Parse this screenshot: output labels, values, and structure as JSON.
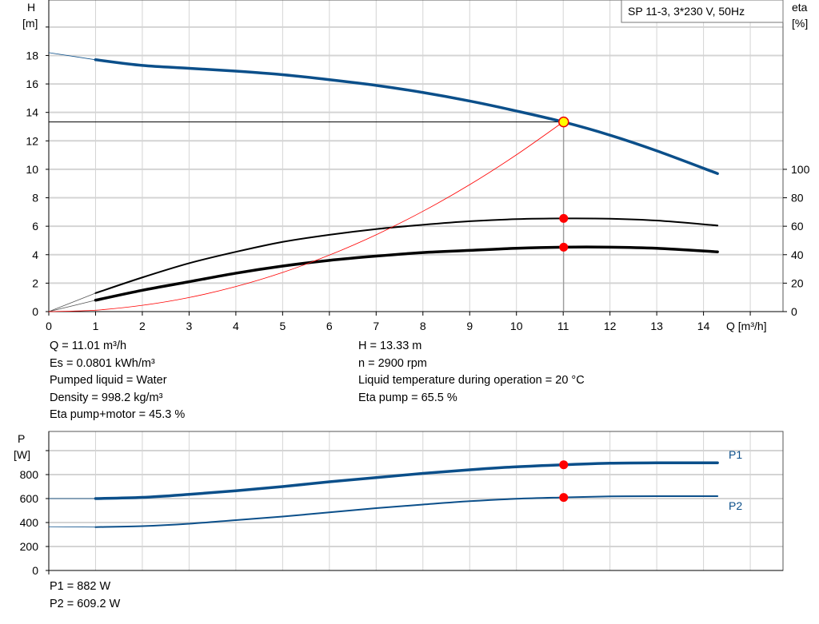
{
  "chart_data": [
    {
      "type": "line",
      "title": "SP 11-3, 3*230 V, 50Hz",
      "ylabel": "H",
      "yunit": "[m]",
      "y2label": "eta",
      "y2unit": "[%]",
      "xlabel": "Q [m³/h]",
      "xlim": [
        0,
        15.7
      ],
      "ylim": [
        0,
        21.9
      ],
      "y2lim": [
        0,
        100
      ],
      "grid": true,
      "xticks": [
        0,
        1,
        2,
        3,
        4,
        5,
        6,
        7,
        8,
        9,
        10,
        11,
        12,
        13,
        14
      ],
      "yticks": [
        0,
        2,
        4,
        6,
        8,
        10,
        12,
        14,
        16,
        18
      ],
      "y2ticks": [
        0,
        20,
        40,
        60,
        80,
        100
      ],
      "series": [
        {
          "key": "H",
          "color": "#0b4f8a",
          "x": [
            1,
            2,
            3,
            4,
            5,
            6,
            7,
            8,
            9,
            10,
            11,
            12,
            13,
            14.3
          ],
          "y": [
            17.7,
            17.3,
            17.1,
            16.9,
            16.65,
            16.3,
            15.9,
            15.4,
            14.8,
            14.1,
            13.33,
            12.4,
            11.3,
            9.7
          ],
          "extrapolated_from": [
            0,
            18.2
          ]
        },
        {
          "key": "eta_pump",
          "color": "#000000",
          "axis": "eta",
          "x": [
            1,
            2,
            3,
            4,
            5,
            6,
            7,
            8,
            9,
            10,
            11,
            12,
            13,
            14.3
          ],
          "y": [
            13,
            24,
            34,
            42,
            49,
            54,
            58,
            61,
            63.5,
            65,
            65.5,
            65.3,
            64,
            60.5
          ],
          "extrapolated_from": [
            0,
            0
          ]
        },
        {
          "key": "eta_total",
          "color": "#000000",
          "axis": "eta",
          "x": [
            1,
            2,
            3,
            4,
            5,
            6,
            7,
            8,
            9,
            10,
            11,
            12,
            13,
            14.3
          ],
          "y": [
            8,
            15,
            21,
            27,
            32,
            36,
            39,
            41.5,
            43,
            44.5,
            45.3,
            45.3,
            44.5,
            42
          ],
          "extrapolated_from": [
            0,
            0
          ]
        },
        {
          "key": "system",
          "color": "#ff0000",
          "x": [
            0,
            1,
            2,
            3,
            4,
            5,
            6,
            7,
            8,
            9,
            10,
            11
          ],
          "y": [
            0,
            0.1,
            0.44,
            0.99,
            1.76,
            2.75,
            3.97,
            5.4,
            7.05,
            8.92,
            11.02,
            13.33
          ]
        }
      ],
      "duty_point": {
        "Q": 11.01,
        "H": 13.33,
        "eta_pump": 65.5,
        "eta_total": 45.3
      }
    },
    {
      "type": "line",
      "ylabel": "P",
      "yunit": "[W]",
      "xlim": [
        0,
        15.7
      ],
      "ylim": [
        0,
        1160
      ],
      "grid": true,
      "yticks": [
        0,
        200,
        400,
        600,
        800
      ],
      "series": [
        {
          "name": "P1",
          "color": "#0b4f8a",
          "x": [
            1,
            2,
            3,
            4,
            5,
            6,
            7,
            8,
            9,
            10,
            11,
            12,
            13,
            14.3
          ],
          "y": [
            600,
            610,
            635,
            665,
            700,
            740,
            775,
            810,
            840,
            865,
            882,
            895,
            898,
            898
          ],
          "extrapolated_from": [
            0,
            600
          ]
        },
        {
          "name": "P2",
          "color": "#0b4f8a",
          "x": [
            1,
            2,
            3,
            4,
            5,
            6,
            7,
            8,
            9,
            10,
            11,
            12,
            13,
            14.3
          ],
          "y": [
            362,
            370,
            390,
            420,
            450,
            485,
            520,
            550,
            578,
            598,
            609.2,
            618,
            620,
            620
          ],
          "extrapolated_from": [
            0,
            365
          ]
        }
      ],
      "duty_point": {
        "P1": 882,
        "P2": 609.2
      }
    }
  ],
  "info": {
    "left": [
      "Q = 11.01 m³/h",
      "Es = 0.0801 kWh/m³",
      "Pumped liquid = Water",
      "Density = 998.2 kg/m³",
      "Eta pump+motor = 45.3 %"
    ],
    "right": [
      "H = 13.33 m",
      "n = 2900 rpm",
      "Liquid temperature during operation = 20 °C",
      "Eta pump = 65.5 %"
    ],
    "power": [
      "P1 = 882 W",
      "P2 = 609.2 W"
    ]
  }
}
